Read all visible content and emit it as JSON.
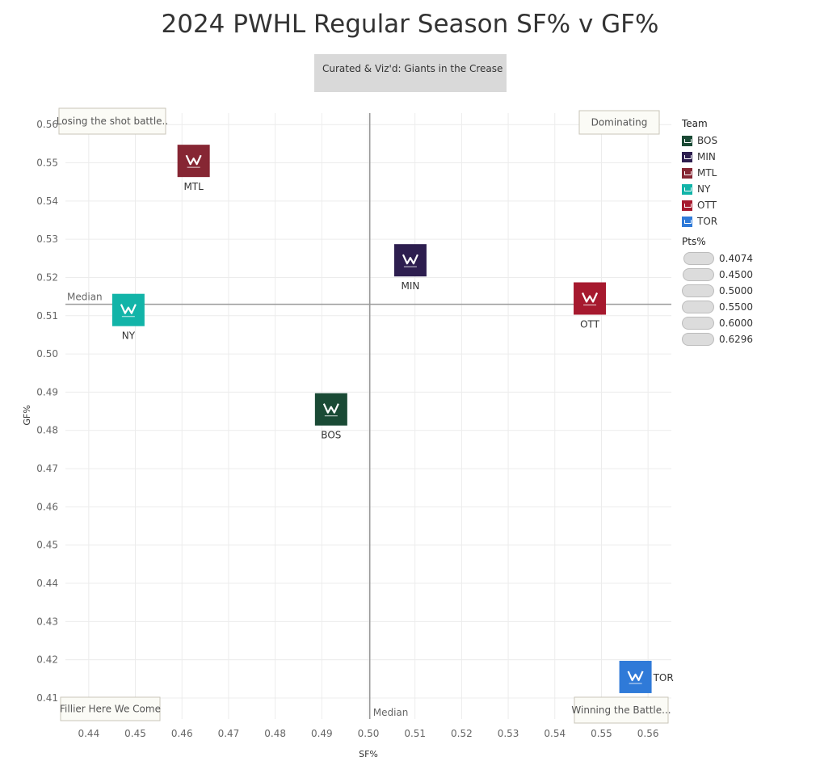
{
  "chart_data": {
    "type": "scatter",
    "title": "2024 PWHL Regular Season SF% v GF%",
    "subtitle": "Curated & Viz'd: Giants in the Crease",
    "xlabel": "SF%",
    "ylabel": "GF%",
    "xlim": [
      0.435,
      0.565
    ],
    "ylim": [
      0.4045,
      0.563
    ],
    "x_ticks": [
      "0.44",
      "0.45",
      "0.46",
      "0.47",
      "0.48",
      "0.49",
      "0.50",
      "0.51",
      "0.52",
      "0.53",
      "0.54",
      "0.55",
      "0.56"
    ],
    "y_ticks": [
      "0.41",
      "0.42",
      "0.43",
      "0.44",
      "0.45",
      "0.46",
      "0.47",
      "0.48",
      "0.49",
      "0.50",
      "0.51",
      "0.52",
      "0.53",
      "0.54",
      "0.55",
      "0.56"
    ],
    "grid": true,
    "median_x": 0.5003,
    "median_y": 0.513,
    "median_label": "Median",
    "points": [
      {
        "team": "BOS",
        "x": 0.492,
        "y": 0.4855,
        "color": "#1a4a35"
      },
      {
        "team": "MIN",
        "x": 0.509,
        "y": 0.5245,
        "color": "#2d1e4f"
      },
      {
        "team": "MTL",
        "x": 0.4625,
        "y": 0.5505,
        "color": "#862633"
      },
      {
        "team": "NY",
        "x": 0.4485,
        "y": 0.5115,
        "color": "#12b4a8"
      },
      {
        "team": "OTT",
        "x": 0.5475,
        "y": 0.5145,
        "color": "#a6192e"
      },
      {
        "team": "TOR",
        "x": 0.5573,
        "y": 0.4155,
        "color": "#2f7ad8"
      }
    ],
    "quadrant_labels": {
      "top_left": "Losing the shot battle..",
      "top_right": "Dominating",
      "bottom_left": "Fillier Here We Come",
      "bottom_right": "Winning the Battle..."
    },
    "legend_placement": "right"
  },
  "legend": {
    "title": "Team",
    "items": [
      {
        "label": "BOS",
        "color": "#1a4a35"
      },
      {
        "label": "MIN",
        "color": "#2d1e4f"
      },
      {
        "label": "MTL",
        "color": "#862633"
      },
      {
        "label": "NY",
        "color": "#12b4a8"
      },
      {
        "label": "OTT",
        "color": "#a6192e"
      },
      {
        "label": "TOR",
        "color": "#2f7ad8"
      }
    ]
  },
  "size_legend": {
    "title": "Pts%",
    "items": [
      "0.4074",
      "0.4500",
      "0.5000",
      "0.5500",
      "0.6000",
      "0.6296"
    ]
  }
}
